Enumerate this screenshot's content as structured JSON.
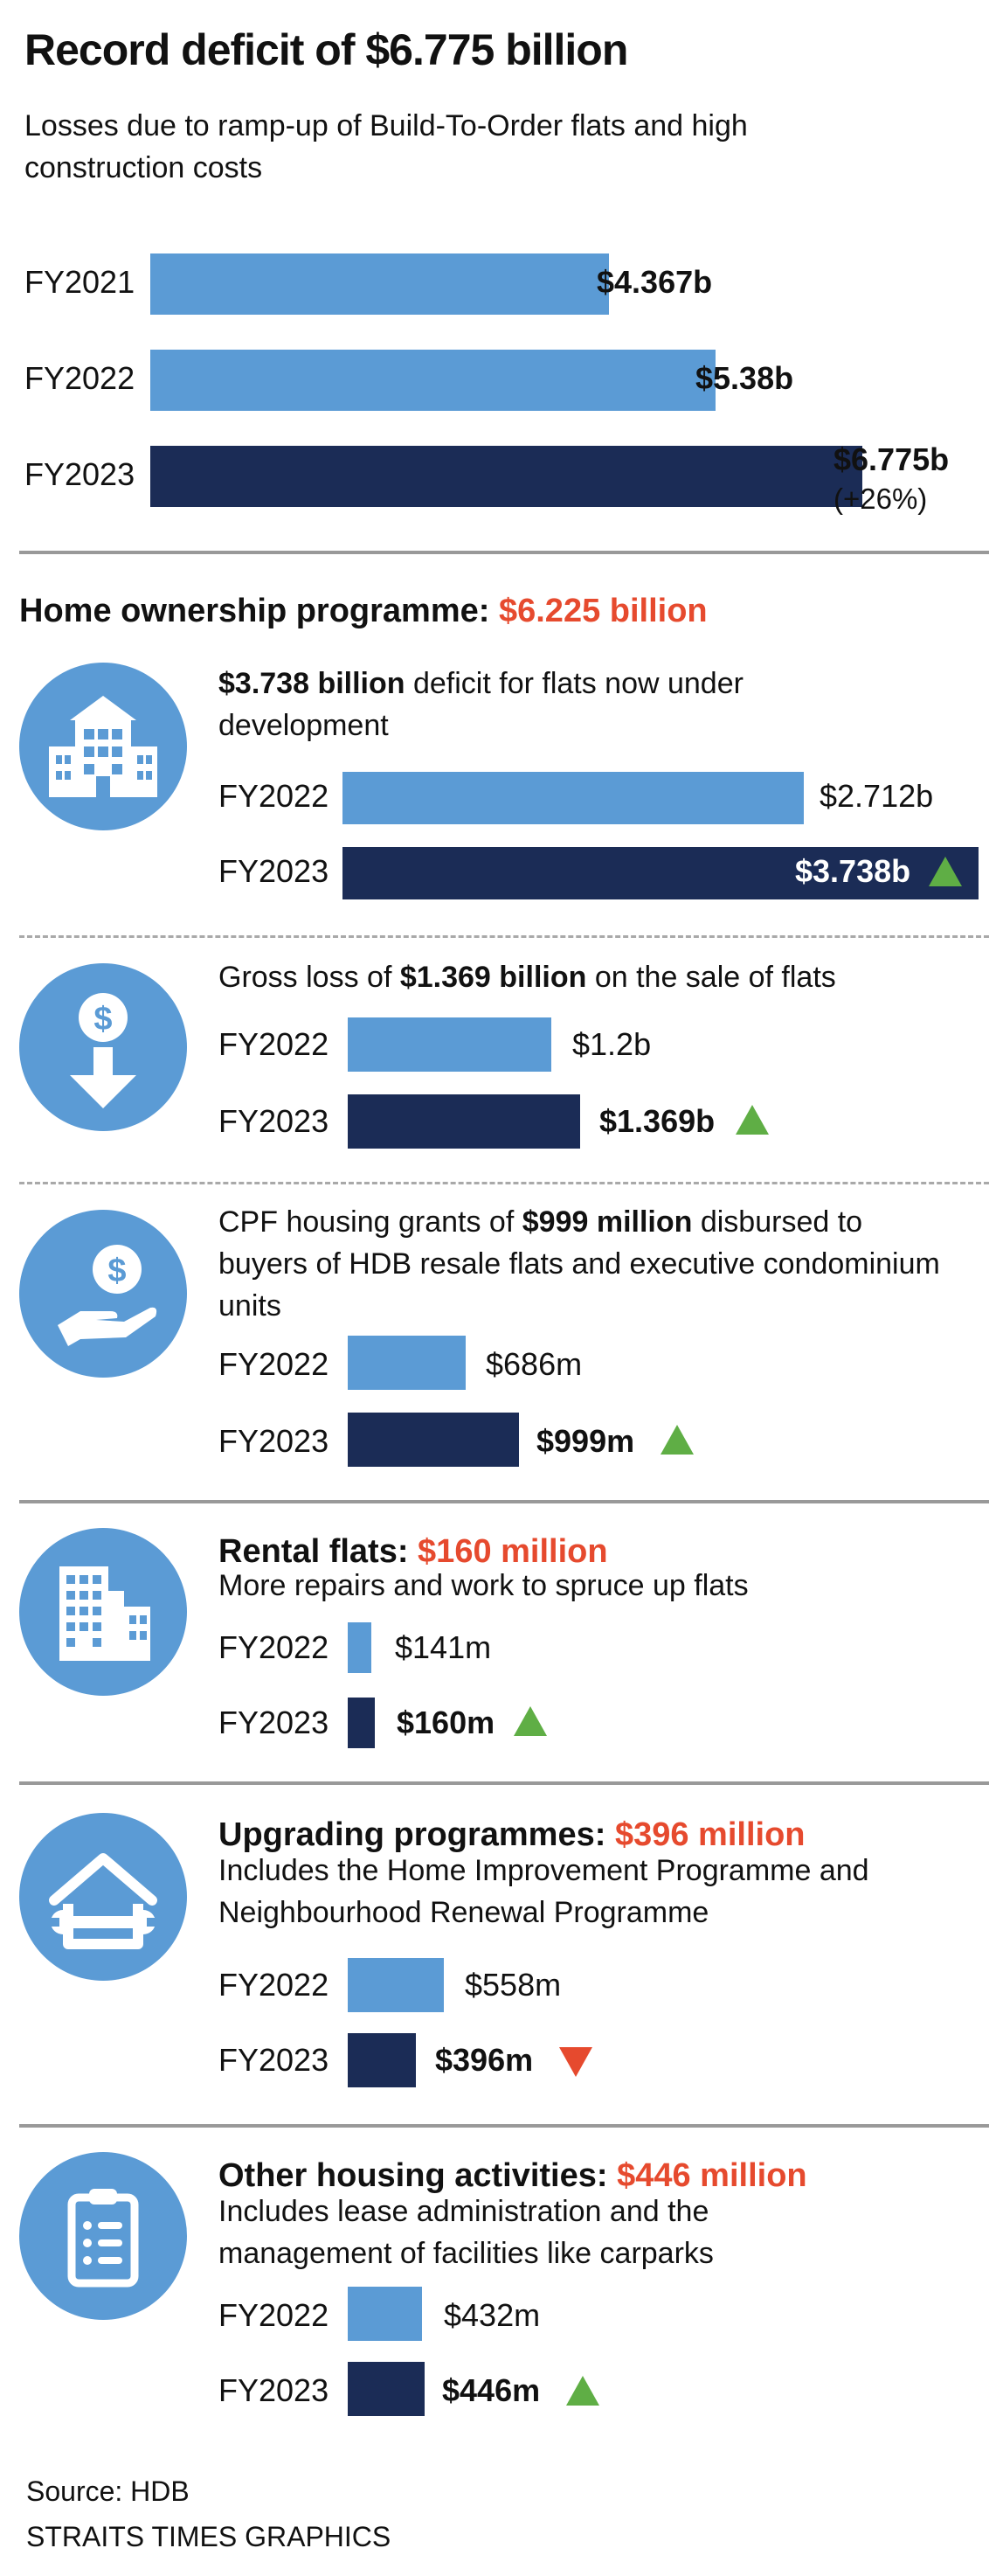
{
  "header": {
    "title": "Record deficit of $6.775 billion",
    "subtitle": "Losses due to ramp-up of Build-To-Order flats and high construction costs"
  },
  "chart_data": [
    {
      "type": "bar",
      "title": "Record deficit of $6.775 billion",
      "categories": [
        "FY2021",
        "FY2022",
        "FY2023"
      ],
      "values": [
        4.367,
        5.38,
        6.775
      ],
      "labels": [
        "$4.367b",
        "$5.38b",
        "$6.775b"
      ],
      "note": "(+26%)",
      "unit": "$ billion"
    },
    {
      "type": "bar",
      "title": "$3.738 billion deficit for flats now under development",
      "categories": [
        "FY2022",
        "FY2023"
      ],
      "values": [
        2.712,
        3.738
      ],
      "labels": [
        "$2.712b",
        "$3.738b"
      ],
      "unit": "$ billion"
    },
    {
      "type": "bar",
      "title": "Gross loss of $1.369 billion on the sale of flats",
      "categories": [
        "FY2022",
        "FY2023"
      ],
      "values": [
        1.2,
        1.369
      ],
      "labels": [
        "$1.2b",
        "$1.369b"
      ],
      "unit": "$ billion"
    },
    {
      "type": "bar",
      "title": "CPF housing grants of $999 million",
      "categories": [
        "FY2022",
        "FY2023"
      ],
      "values": [
        686,
        999
      ],
      "labels": [
        "$686m",
        "$999m"
      ],
      "unit": "$ million"
    },
    {
      "type": "bar",
      "title": "Rental flats: $160 million",
      "categories": [
        "FY2022",
        "FY2023"
      ],
      "values": [
        141,
        160
      ],
      "labels": [
        "$141m",
        "$160m"
      ],
      "unit": "$ million"
    },
    {
      "type": "bar",
      "title": "Upgrading programmes: $396 million",
      "categories": [
        "FY2022",
        "FY2023"
      ],
      "values": [
        558,
        396
      ],
      "labels": [
        "$558m",
        "$396m"
      ],
      "unit": "$ million"
    },
    {
      "type": "bar",
      "title": "Other housing activities: $446 million",
      "categories": [
        "FY2022",
        "FY2023"
      ],
      "values": [
        432,
        446
      ],
      "labels": [
        "$432m",
        "$446m"
      ],
      "unit": "$ million"
    }
  ],
  "home_ownership": {
    "heading": "Home ownership programme: ",
    "amount": "$6.225 billion"
  },
  "dev": {
    "amount": "$3.738 billion",
    "rest": " deficit for flats now under development"
  },
  "sale": {
    "pre": "Gross loss of ",
    "amount": "$1.369 billion",
    "post": " on the sale of flats"
  },
  "cpf": {
    "pre": "CPF housing grants of ",
    "amount": "$999 million",
    "post": " disbursed to buyers of HDB resale flats and executive condominium units"
  },
  "rental": {
    "heading": "Rental flats: ",
    "amount": "$160 million",
    "desc": "More repairs and work to spruce up flats"
  },
  "upgrading": {
    "heading": "Upgrading programmes: ",
    "amount": "$396 million",
    "desc": "Includes the Home Improvement Programme and Neighbourhood Renewal Programme"
  },
  "other": {
    "heading": "Other housing activities: ",
    "amount": "$446 million",
    "desc": "Includes lease administration and the management of facilities like carparks"
  },
  "footer": {
    "source": "Source: HDB",
    "credit": "STRAITS TIMES GRAPHICS"
  },
  "colors": {
    "light_bar": "#5b9bd5",
    "dark_bar": "#1b2c56",
    "accent_red": "#e64a2e",
    "up_green": "#5fae45",
    "rule": "#999999"
  }
}
